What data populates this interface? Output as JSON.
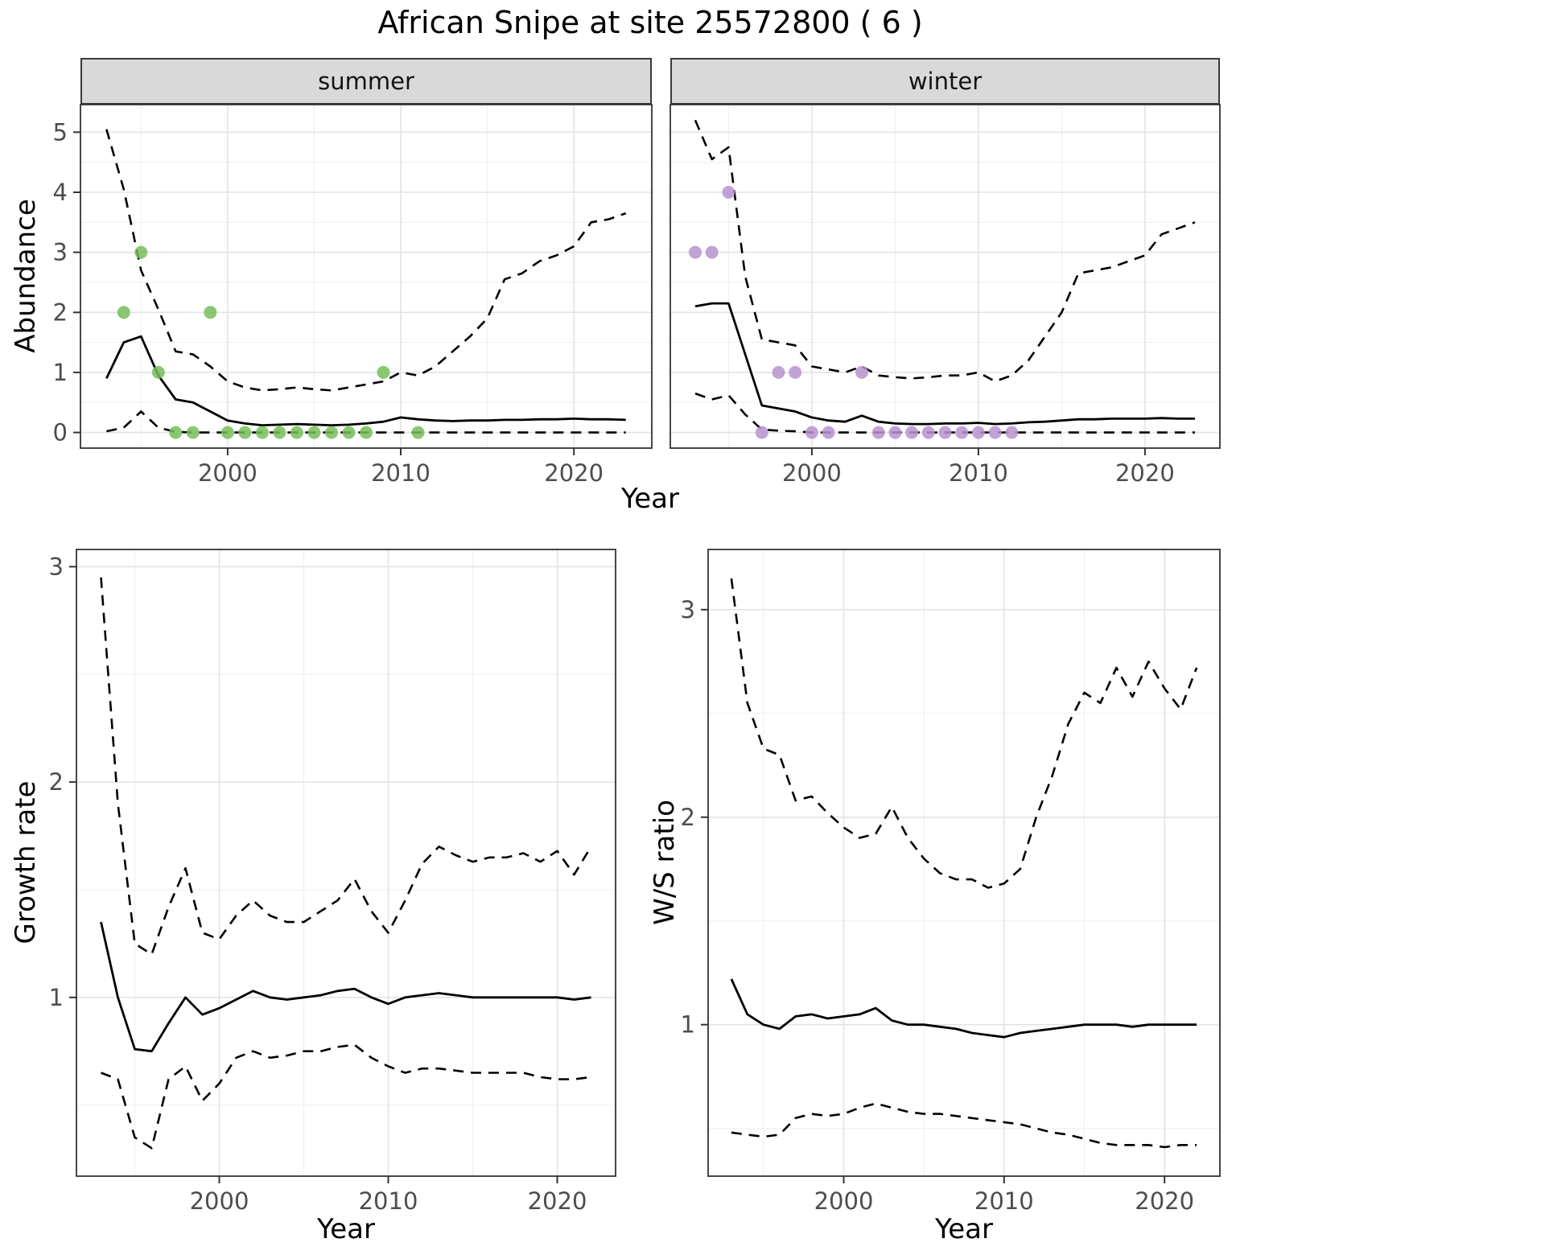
{
  "title": "African Snipe at site 25572800 ( 6 )",
  "style": {
    "background": "#ffffff",
    "line": "#000000",
    "grid_major": "#e3e3e3",
    "grid_minor": "#f0f0f0",
    "panel_border": "#333333",
    "strip_bg": "#d9d9d9",
    "tick": "#333333",
    "tick_text": "#4d4d4d",
    "summer_point": "#77bd5b",
    "winter_point": "#b793ce"
  },
  "chart_data": [
    {
      "id": "abundance_summer",
      "type": "line",
      "strip_label": "summer",
      "xlabel": "Year",
      "ylabel": "Abundance",
      "xlim": [
        1991.5,
        2024.5
      ],
      "ylim": [
        -0.26,
        5.46
      ],
      "xticks": [
        2000,
        2010,
        2020
      ],
      "yticks": [
        0,
        1,
        2,
        3,
        4,
        5
      ],
      "x_minor": [
        1995,
        2005,
        2015
      ],
      "y_minor": [
        0.5,
        1.5,
        2.5,
        3.5,
        4.5
      ],
      "x": [
        1993,
        1994,
        1995,
        1996,
        1997,
        1998,
        1999,
        2000,
        2001,
        2002,
        2003,
        2004,
        2005,
        2006,
        2007,
        2008,
        2009,
        2010,
        2011,
        2012,
        2013,
        2014,
        2015,
        2016,
        2017,
        2018,
        2019,
        2020,
        2021,
        2022,
        2023
      ],
      "series": [
        {
          "name": "upper-ci",
          "style": "dashed",
          "values": [
            5.05,
            4.05,
            2.7,
            2.05,
            1.35,
            1.3,
            1.1,
            0.85,
            0.75,
            0.7,
            0.72,
            0.75,
            0.72,
            0.7,
            0.75,
            0.8,
            0.85,
            1.0,
            0.95,
            1.1,
            1.35,
            1.6,
            1.9,
            2.55,
            2.65,
            2.85,
            2.95,
            3.1,
            3.5,
            3.55,
            3.65
          ]
        },
        {
          "name": "estimate",
          "style": "solid",
          "values": [
            0.9,
            1.5,
            1.6,
            0.95,
            0.55,
            0.5,
            0.35,
            0.2,
            0.15,
            0.12,
            0.13,
            0.14,
            0.13,
            0.12,
            0.13,
            0.15,
            0.18,
            0.25,
            0.22,
            0.2,
            0.19,
            0.2,
            0.2,
            0.21,
            0.21,
            0.22,
            0.22,
            0.23,
            0.22,
            0.22,
            0.21
          ]
        },
        {
          "name": "lower-ci",
          "style": "dashed",
          "values": [
            0.02,
            0.08,
            0.35,
            0.08,
            0.01,
            0,
            0,
            0,
            0,
            0,
            0,
            0,
            0,
            0,
            0,
            0,
            0,
            0,
            0,
            0,
            0,
            0,
            0,
            0,
            0,
            0,
            0,
            0,
            0,
            0,
            0
          ]
        }
      ],
      "points": {
        "name": "observed-counts",
        "color": "#77bd5b",
        "data": [
          [
            1994,
            2
          ],
          [
            1995,
            3
          ],
          [
            1996,
            1
          ],
          [
            1997,
            0
          ],
          [
            1998,
            0
          ],
          [
            1999,
            2
          ],
          [
            2000,
            0
          ],
          [
            2001,
            0
          ],
          [
            2002,
            0
          ],
          [
            2003,
            0
          ],
          [
            2004,
            0
          ],
          [
            2005,
            0
          ],
          [
            2006,
            0
          ],
          [
            2007,
            0
          ],
          [
            2008,
            0
          ],
          [
            2009,
            1
          ],
          [
            2011,
            0
          ]
        ]
      }
    },
    {
      "id": "abundance_winter",
      "type": "line",
      "strip_label": "winter",
      "xlabel": "Year",
      "ylabel": "Abundance",
      "xlim": [
        1991.5,
        2024.5
      ],
      "ylim": [
        -0.26,
        5.46
      ],
      "xticks": [
        2000,
        2010,
        2020
      ],
      "yticks": [
        0,
        1,
        2,
        3,
        4,
        5
      ],
      "x_minor": [
        1995,
        2005,
        2015
      ],
      "y_minor": [
        0.5,
        1.5,
        2.5,
        3.5,
        4.5
      ],
      "x": [
        1993,
        1994,
        1995,
        1996,
        1997,
        1998,
        1999,
        2000,
        2001,
        2002,
        2003,
        2004,
        2005,
        2006,
        2007,
        2008,
        2009,
        2010,
        2011,
        2012,
        2013,
        2014,
        2015,
        2016,
        2017,
        2018,
        2019,
        2020,
        2021,
        2022,
        2023
      ],
      "series": [
        {
          "name": "upper-ci",
          "style": "dashed",
          "values": [
            5.2,
            4.55,
            4.75,
            2.6,
            1.55,
            1.5,
            1.45,
            1.1,
            1.05,
            1.0,
            1.1,
            0.95,
            0.92,
            0.9,
            0.92,
            0.95,
            0.95,
            1.0,
            0.85,
            0.95,
            1.2,
            1.6,
            2.0,
            2.65,
            2.7,
            2.75,
            2.85,
            2.95,
            3.3,
            3.4,
            3.5
          ]
        },
        {
          "name": "estimate",
          "style": "solid",
          "values": [
            2.1,
            2.15,
            2.15,
            1.3,
            0.45,
            0.4,
            0.35,
            0.25,
            0.2,
            0.18,
            0.28,
            0.18,
            0.15,
            0.14,
            0.14,
            0.15,
            0.15,
            0.16,
            0.14,
            0.15,
            0.17,
            0.18,
            0.2,
            0.22,
            0.22,
            0.23,
            0.23,
            0.23,
            0.24,
            0.23,
            0.23
          ]
        },
        {
          "name": "lower-ci",
          "style": "dashed",
          "values": [
            0.65,
            0.55,
            0.62,
            0.3,
            0.05,
            0.03,
            0.02,
            0,
            0,
            0,
            0,
            0,
            0,
            0,
            0,
            0,
            0,
            0,
            0,
            0,
            0,
            0,
            0,
            0,
            0,
            0,
            0,
            0,
            0,
            0,
            0
          ]
        }
      ],
      "points": {
        "name": "observed-counts",
        "color": "#b793ce",
        "data": [
          [
            1993,
            3
          ],
          [
            1994,
            3
          ],
          [
            1995,
            4
          ],
          [
            1997,
            0
          ],
          [
            1998,
            1
          ],
          [
            1999,
            1
          ],
          [
            2000,
            0
          ],
          [
            2001,
            0
          ],
          [
            2003,
            1
          ],
          [
            2004,
            0
          ],
          [
            2005,
            0
          ],
          [
            2006,
            0
          ],
          [
            2007,
            0
          ],
          [
            2008,
            0
          ],
          [
            2009,
            0
          ],
          [
            2010,
            0
          ],
          [
            2011,
            0
          ],
          [
            2012,
            0
          ]
        ]
      }
    },
    {
      "id": "growth_rate",
      "type": "line",
      "strip_label": "",
      "xlabel": "Year",
      "ylabel": "Growth rate",
      "xlim": [
        1991.55,
        2023.45
      ],
      "ylim": [
        0.17,
        3.08
      ],
      "xticks": [
        2000,
        2010,
        2020
      ],
      "yticks": [
        1,
        2,
        3
      ],
      "x_minor": [
        1995,
        2005,
        2015
      ],
      "y_minor": [
        0.5,
        1.5,
        2.5
      ],
      "x": [
        1993,
        1994,
        1995,
        1996,
        1997,
        1998,
        1999,
        2000,
        2001,
        2002,
        2003,
        2004,
        2005,
        2006,
        2007,
        2008,
        2009,
        2010,
        2011,
        2012,
        2013,
        2014,
        2015,
        2016,
        2017,
        2018,
        2019,
        2020,
        2021,
        2022
      ],
      "series": [
        {
          "name": "upper-ci",
          "style": "dashed",
          "values": [
            2.95,
            1.9,
            1.25,
            1.2,
            1.42,
            1.6,
            1.3,
            1.27,
            1.38,
            1.45,
            1.38,
            1.35,
            1.35,
            1.4,
            1.45,
            1.55,
            1.4,
            1.3,
            1.45,
            1.62,
            1.7,
            1.66,
            1.63,
            1.65,
            1.65,
            1.67,
            1.63,
            1.68,
            1.57,
            1.7
          ]
        },
        {
          "name": "estimate",
          "style": "solid",
          "values": [
            1.35,
            1.0,
            0.76,
            0.75,
            0.88,
            1.0,
            0.92,
            0.95,
            0.99,
            1.03,
            1.0,
            0.99,
            1.0,
            1.01,
            1.03,
            1.04,
            1.0,
            0.97,
            1.0,
            1.01,
            1.02,
            1.01,
            1.0,
            1.0,
            1.0,
            1.0,
            1.0,
            1.0,
            0.99,
            1.0
          ]
        },
        {
          "name": "lower-ci",
          "style": "dashed",
          "values": [
            0.65,
            0.62,
            0.35,
            0.3,
            0.62,
            0.68,
            0.52,
            0.6,
            0.72,
            0.75,
            0.72,
            0.73,
            0.75,
            0.75,
            0.77,
            0.78,
            0.72,
            0.68,
            0.65,
            0.67,
            0.67,
            0.66,
            0.65,
            0.65,
            0.65,
            0.65,
            0.63,
            0.62,
            0.62,
            0.63
          ]
        }
      ]
    },
    {
      "id": "ws_ratio",
      "type": "line",
      "strip_label": "",
      "xlabel": "Year",
      "ylabel": "W/S ratio",
      "xlim": [
        1991.55,
        2023.45
      ],
      "ylim": [
        0.27,
        3.29
      ],
      "xticks": [
        2000,
        2010,
        2020
      ],
      "yticks": [
        1,
        2,
        3
      ],
      "x_minor": [
        1995,
        2005,
        2015
      ],
      "y_minor": [
        0.5,
        1.5,
        2.5
      ],
      "x": [
        1993,
        1994,
        1995,
        1996,
        1997,
        1998,
        1999,
        2000,
        2001,
        2002,
        2003,
        2004,
        2005,
        2006,
        2007,
        2008,
        2009,
        2010,
        2011,
        2012,
        2013,
        2014,
        2015,
        2016,
        2017,
        2018,
        2019,
        2020,
        2021,
        2022
      ],
      "series": [
        {
          "name": "upper-ci",
          "style": "dashed",
          "values": [
            3.15,
            2.55,
            2.33,
            2.3,
            2.08,
            2.1,
            2.02,
            1.95,
            1.9,
            1.92,
            2.05,
            1.9,
            1.8,
            1.73,
            1.7,
            1.7,
            1.66,
            1.68,
            1.75,
            2.0,
            2.2,
            2.45,
            2.6,
            2.55,
            2.72,
            2.58,
            2.75,
            2.62,
            2.52,
            2.72
          ]
        },
        {
          "name": "estimate",
          "style": "solid",
          "values": [
            1.22,
            1.05,
            1.0,
            0.98,
            1.04,
            1.05,
            1.03,
            1.04,
            1.05,
            1.08,
            1.02,
            1.0,
            1.0,
            0.99,
            0.98,
            0.96,
            0.95,
            0.94,
            0.96,
            0.97,
            0.98,
            0.99,
            1.0,
            1.0,
            1.0,
            0.99,
            1.0,
            1.0,
            1.0,
            1.0
          ]
        },
        {
          "name": "lower-ci",
          "style": "dashed",
          "values": [
            0.48,
            0.47,
            0.46,
            0.47,
            0.55,
            0.57,
            0.56,
            0.57,
            0.6,
            0.62,
            0.6,
            0.58,
            0.57,
            0.57,
            0.56,
            0.55,
            0.54,
            0.53,
            0.52,
            0.5,
            0.48,
            0.47,
            0.45,
            0.43,
            0.42,
            0.42,
            0.42,
            0.41,
            0.42,
            0.42
          ]
        }
      ]
    }
  ]
}
